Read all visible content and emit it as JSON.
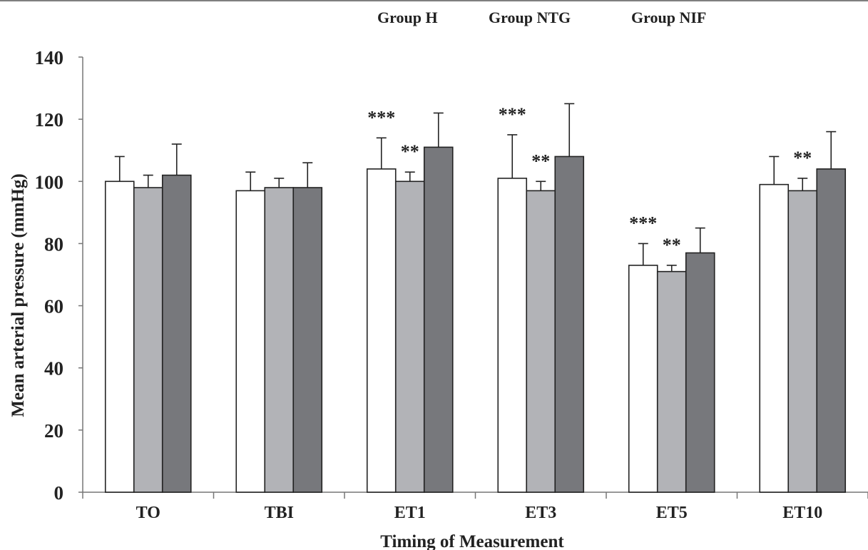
{
  "chart_data": {
    "type": "bar",
    "categories": [
      "TO",
      "TBI",
      "ET1",
      "ET3",
      "ET5",
      "ET10"
    ],
    "series": [
      {
        "name": "Group H",
        "color": "#ffffff",
        "values": [
          100,
          97,
          104,
          101,
          73,
          99
        ],
        "errors": [
          8,
          6,
          10,
          14,
          7,
          9
        ]
      },
      {
        "name": "Group NTG",
        "color": "#b2b3b7",
        "values": [
          98,
          98,
          100,
          97,
          71,
          97
        ],
        "errors": [
          4,
          3,
          3,
          3,
          2,
          4
        ]
      },
      {
        "name": "Group NIF",
        "color": "#77787c",
        "values": [
          102,
          98,
          111,
          108,
          77,
          104
        ],
        "errors": [
          10,
          8,
          11,
          17,
          8,
          12
        ]
      }
    ],
    "annotations": [
      {
        "category": "ET1",
        "series": 0,
        "text": "***"
      },
      {
        "category": "ET1",
        "series": 1,
        "text": "**"
      },
      {
        "category": "ET3",
        "series": 0,
        "text": "***"
      },
      {
        "category": "ET3",
        "series": 1,
        "text": "**"
      },
      {
        "category": "ET5",
        "series": 0,
        "text": "***"
      },
      {
        "category": "ET5",
        "series": 1,
        "text": "**"
      },
      {
        "category": "ET10",
        "series": 1,
        "text": "**"
      }
    ],
    "title": "",
    "xlabel": "Timing of Measurement",
    "ylabel": "Mean arterial pressure (mmHg)",
    "ylim": [
      0,
      140
    ],
    "yticks": [
      0,
      20,
      40,
      60,
      80,
      100,
      120,
      140
    ],
    "grid": false,
    "legend_position": "top-center"
  }
}
